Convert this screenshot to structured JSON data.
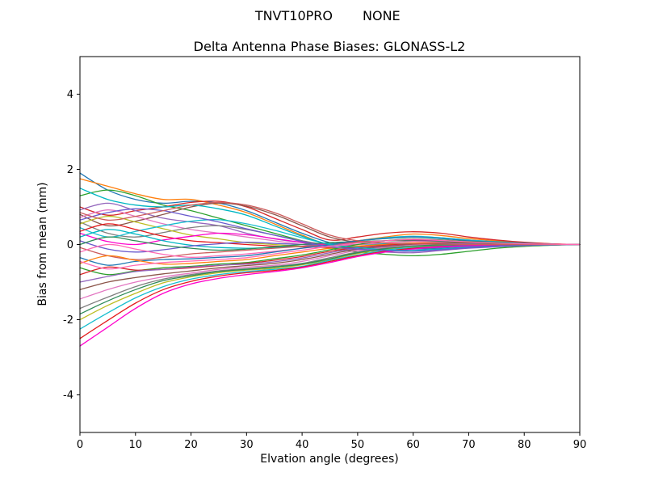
{
  "figure": {
    "suptitle_left": "TNVT10PRO",
    "suptitle_right": "NONE"
  },
  "chart_data": {
    "type": "line",
    "title": "Delta Antenna Phase Biases: GLONASS-L2",
    "xlabel": "Elvation angle (degrees)",
    "ylabel": "Bias from mean (mm)",
    "xlim": [
      0,
      90
    ],
    "ylim": [
      -5,
      5
    ],
    "x_ticks": [
      0,
      10,
      20,
      30,
      40,
      50,
      60,
      70,
      80,
      90
    ],
    "y_ticks": [
      -4,
      -2,
      0,
      2,
      4
    ],
    "grid": false,
    "legend": "none",
    "background": "#ffffff",
    "axis_color": "#000000",
    "palette": [
      "#1f77b4",
      "#ff7f0e",
      "#2ca02c",
      "#d62728",
      "#9467bd",
      "#8c564b",
      "#e377c2",
      "#7f7f7f",
      "#bcbd22",
      "#17becf",
      "#e41a1c",
      "#ff00cc",
      "#00b7c3",
      "#6a5acd",
      "#2e8b57",
      "#cd5c5c",
      "#ff69b4"
    ],
    "x": [
      0,
      5,
      10,
      15,
      20,
      25,
      30,
      35,
      40,
      45,
      50,
      55,
      60,
      65,
      70,
      75,
      80,
      85,
      90
    ],
    "series": [
      [
        1.9,
        1.45,
        1.2,
        1.1,
        1.15,
        1.1,
        0.9,
        0.6,
        0.3,
        0.05,
        -0.05,
        -0.1,
        -0.12,
        -0.1,
        -0.06,
        -0.04,
        -0.02,
        -0.01,
        0
      ],
      [
        1.75,
        1.55,
        1.35,
        1.2,
        1.2,
        1.05,
        0.85,
        0.55,
        0.25,
        0,
        0.1,
        0.2,
        0.28,
        0.24,
        0.16,
        0.1,
        0.05,
        0.02,
        0
      ],
      [
        1.3,
        1.45,
        1.3,
        1.05,
        0.9,
        0.7,
        0.5,
        0.3,
        0.1,
        -0.1,
        -0.2,
        -0.26,
        -0.3,
        -0.26,
        -0.18,
        -0.1,
        -0.05,
        -0.02,
        0
      ],
      [
        1.0,
        0.78,
        0.9,
        1.0,
        1.12,
        1.15,
        1.0,
        0.7,
        0.4,
        0.12,
        0.2,
        0.3,
        0.34,
        0.3,
        0.2,
        0.12,
        0.06,
        0.02,
        0
      ],
      [
        0.92,
        1.1,
        0.9,
        0.7,
        0.6,
        0.5,
        0.3,
        0.15,
        0.05,
        -0.05,
        -0.14,
        -0.2,
        -0.22,
        -0.16,
        -0.1,
        -0.06,
        -0.03,
        -0.01,
        0
      ],
      [
        0.8,
        0.5,
        0.62,
        0.8,
        1.0,
        1.1,
        1.02,
        0.8,
        0.5,
        0.2,
        0.06,
        0,
        0,
        0,
        0,
        0,
        0,
        0,
        0
      ],
      [
        0.72,
        0.92,
        0.75,
        0.55,
        0.4,
        0.3,
        0.2,
        0.1,
        0,
        -0.1,
        -0.16,
        -0.18,
        -0.16,
        -0.12,
        -0.08,
        -0.05,
        -0.02,
        -0.01,
        0
      ],
      [
        0.6,
        0.3,
        0.2,
        0.32,
        0.45,
        0.5,
        0.4,
        0.25,
        0.1,
        0,
        0.1,
        0.16,
        0.2,
        0.18,
        0.12,
        0.08,
        0.04,
        0.01,
        0
      ],
      [
        0.55,
        0.75,
        0.6,
        0.42,
        0.25,
        0.15,
        0.05,
        0,
        -0.05,
        -0.1,
        -0.12,
        -0.12,
        -0.1,
        -0.08,
        -0.05,
        -0.03,
        -0.02,
        -0.01,
        0
      ],
      [
        0.45,
        0.2,
        0.35,
        0.5,
        0.62,
        0.66,
        0.55,
        0.38,
        0.18,
        0.02,
        0.1,
        0.18,
        0.22,
        0.18,
        0.12,
        0.07,
        0.03,
        0.01,
        0
      ],
      [
        0.35,
        0.55,
        0.4,
        0.22,
        0.1,
        0.05,
        0,
        -0.04,
        -0.06,
        -0.08,
        -0.08,
        -0.06,
        -0.05,
        -0.04,
        -0.02,
        -0.01,
        0,
        0,
        0
      ],
      [
        0.3,
        0.08,
        0,
        0.12,
        0.22,
        0.3,
        0.26,
        0.16,
        0.06,
        0,
        0.06,
        0.1,
        0.12,
        0.1,
        0.07,
        0.05,
        0.02,
        0.01,
        0
      ],
      [
        0.2,
        0.4,
        0.28,
        0.1,
        -0.02,
        -0.08,
        -0.1,
        -0.08,
        -0.05,
        -0.02,
        0,
        0.02,
        0.04,
        0.03,
        0.02,
        0.01,
        0,
        0,
        0
      ],
      [
        0.1,
        -0.12,
        -0.2,
        -0.14,
        -0.04,
        0.02,
        0.06,
        0.03,
        0,
        -0.03,
        -0.06,
        -0.08,
        -0.1,
        -0.08,
        -0.05,
        -0.03,
        -0.01,
        0,
        0
      ],
      [
        0,
        0.2,
        0.1,
        -0.02,
        -0.1,
        -0.15,
        -0.12,
        -0.06,
        0,
        0.05,
        0.08,
        0.1,
        0.1,
        0.08,
        0.05,
        0.03,
        0.01,
        0,
        0
      ],
      [
        -0.08,
        -0.3,
        -0.4,
        -0.34,
        -0.25,
        -0.2,
        -0.15,
        -0.1,
        -0.05,
        0,
        0.06,
        0.1,
        0.14,
        0.12,
        0.08,
        0.05,
        0.02,
        0.01,
        0
      ],
      [
        -0.2,
        0,
        -0.12,
        -0.26,
        -0.34,
        -0.3,
        -0.25,
        -0.18,
        -0.1,
        -0.04,
        0,
        0.05,
        0.08,
        0.06,
        0.04,
        0.02,
        0.01,
        0,
        0
      ],
      [
        -0.35,
        -0.55,
        -0.45,
        -0.4,
        -0.38,
        -0.34,
        -0.3,
        -0.2,
        -0.1,
        0,
        0.1,
        0.16,
        0.2,
        0.16,
        0.1,
        0.06,
        0.03,
        0.01,
        0
      ],
      [
        -0.5,
        -0.3,
        -0.42,
        -0.52,
        -0.5,
        -0.45,
        -0.4,
        -0.3,
        -0.2,
        -0.1,
        -0.04,
        0,
        0.04,
        0.04,
        0.03,
        0.02,
        0.01,
        0,
        0
      ],
      [
        -0.62,
        -0.8,
        -0.7,
        -0.62,
        -0.58,
        -0.52,
        -0.48,
        -0.38,
        -0.28,
        -0.14,
        0,
        0.1,
        0.15,
        0.12,
        0.08,
        0.05,
        0.02,
        0.01,
        0
      ],
      [
        -0.8,
        -0.6,
        -0.68,
        -0.66,
        -0.62,
        -0.56,
        -0.5,
        -0.42,
        -0.32,
        -0.18,
        -0.08,
        -0.02,
        0.02,
        0.03,
        0.02,
        0.01,
        0,
        0,
        0
      ],
      [
        -1.0,
        -0.85,
        -0.72,
        -0.66,
        -0.6,
        -0.55,
        -0.52,
        -0.46,
        -0.36,
        -0.22,
        -0.1,
        -0.04,
        0,
        0.02,
        0.02,
        0.01,
        0,
        0,
        0
      ],
      [
        -1.2,
        -1.0,
        -0.88,
        -0.78,
        -0.7,
        -0.62,
        -0.56,
        -0.5,
        -0.4,
        -0.26,
        -0.12,
        -0.05,
        0,
        0.04,
        0.05,
        0.03,
        0.02,
        0.01,
        0
      ],
      [
        -1.45,
        -1.2,
        -1.0,
        -0.86,
        -0.76,
        -0.66,
        -0.6,
        -0.55,
        -0.45,
        -0.3,
        -0.16,
        -0.08,
        -0.02,
        0,
        0,
        0,
        0,
        0,
        0
      ],
      [
        -1.7,
        -1.4,
        -1.12,
        -0.92,
        -0.8,
        -0.7,
        -0.64,
        -0.58,
        -0.5,
        -0.35,
        -0.2,
        -0.1,
        -0.05,
        -0.02,
        0,
        0,
        0,
        0,
        0
      ],
      [
        -2.0,
        -1.62,
        -1.3,
        -1.02,
        -0.86,
        -0.75,
        -0.68,
        -0.63,
        -0.54,
        -0.4,
        -0.24,
        -0.12,
        -0.05,
        -0.02,
        -0.01,
        0,
        0,
        0,
        0
      ],
      [
        -2.25,
        -1.82,
        -1.42,
        -1.12,
        -0.92,
        -0.8,
        -0.72,
        -0.66,
        -0.58,
        -0.42,
        -0.28,
        -0.15,
        -0.08,
        -0.04,
        -0.02,
        -0.01,
        0,
        0,
        0
      ],
      [
        -2.5,
        -2.02,
        -1.56,
        -1.2,
        -0.98,
        -0.84,
        -0.75,
        -0.69,
        -0.6,
        -0.45,
        -0.3,
        -0.18,
        -0.1,
        -0.05,
        -0.03,
        -0.01,
        0,
        0,
        0
      ],
      [
        -2.7,
        -2.2,
        -1.7,
        -1.3,
        -1.05,
        -0.9,
        -0.8,
        -0.72,
        -0.62,
        -0.48,
        -0.32,
        -0.2,
        -0.12,
        -0.06,
        -0.03,
        -0.01,
        0,
        0,
        0
      ],
      [
        1.5,
        1.2,
        1.05,
        1.0,
        1.05,
        0.95,
        0.78,
        0.5,
        0.22,
        0,
        -0.08,
        -0.14,
        -0.16,
        -0.12,
        -0.08,
        -0.05,
        -0.02,
        -0.01,
        0
      ],
      [
        0.65,
        0.85,
        0.95,
        0.9,
        0.75,
        0.6,
        0.42,
        0.25,
        0.08,
        -0.06,
        -0.12,
        -0.16,
        -0.18,
        -0.14,
        -0.09,
        -0.05,
        -0.02,
        -0.01,
        0
      ],
      [
        -1.85,
        -1.5,
        -1.2,
        -0.96,
        -0.83,
        -0.72,
        -0.66,
        -0.6,
        -0.52,
        -0.38,
        -0.22,
        -0.11,
        -0.04,
        -0.01,
        0,
        0,
        0,
        0,
        0
      ],
      [
        0.85,
        0.65,
        0.75,
        0.9,
        1.05,
        1.12,
        1.05,
        0.85,
        0.55,
        0.25,
        0.1,
        0.04,
        0.02,
        0.01,
        0,
        0,
        0,
        0,
        0
      ],
      [
        -0.45,
        -0.65,
        -0.55,
        -0.48,
        -0.44,
        -0.4,
        -0.35,
        -0.25,
        -0.15,
        -0.05,
        0.04,
        0.1,
        0.14,
        0.11,
        0.07,
        0.04,
        0.02,
        0.01,
        0
      ]
    ]
  }
}
